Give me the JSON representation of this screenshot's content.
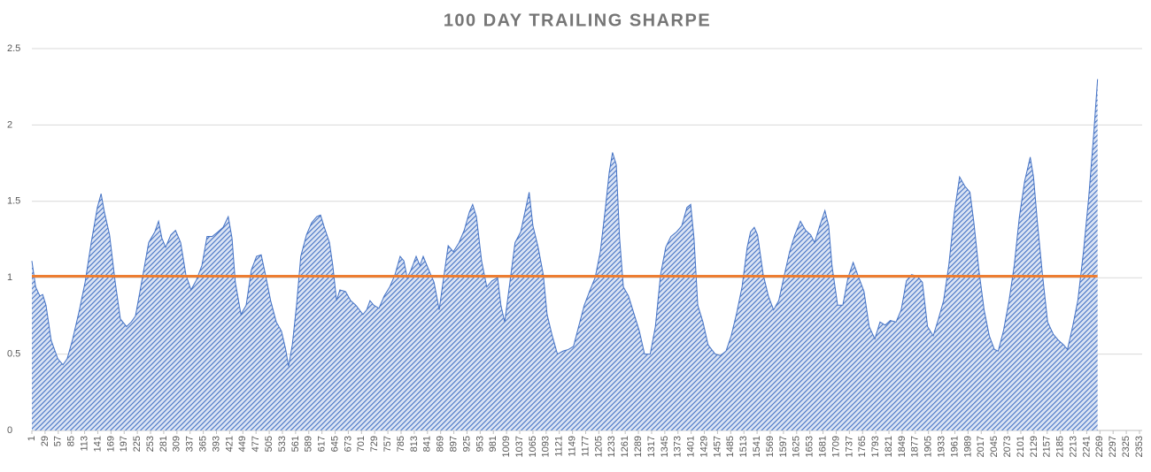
{
  "chart_data": {
    "type": "area",
    "title": "100 DAY TRAILING SHARPE",
    "xlim": [
      1,
      2353
    ],
    "xticks": [
      1,
      29,
      57,
      85,
      113,
      141,
      169,
      197,
      225,
      253,
      281,
      309,
      337,
      365,
      393,
      421,
      449,
      477,
      505,
      533,
      561,
      589,
      617,
      645,
      673,
      701,
      729,
      757,
      785,
      813,
      841,
      869,
      897,
      925,
      953,
      981,
      1009,
      1037,
      1065,
      1093,
      1121,
      1149,
      1177,
      1205,
      1233,
      1261,
      1289,
      1317,
      1345,
      1373,
      1401,
      1429,
      1457,
      1485,
      1513,
      1541,
      1569,
      1597,
      1625,
      1653,
      1681,
      1709,
      1737,
      1765,
      1793,
      1821,
      1849,
      1877,
      1905,
      1933,
      1961,
      1989,
      2017,
      2045,
      2073,
      2101,
      2129,
      2157,
      2185,
      2213,
      2241,
      2269,
      2297,
      2325,
      2353
    ],
    "ylim": [
      0,
      2.5
    ],
    "yticks": [
      0,
      0.5,
      1,
      1.5,
      2,
      2.5
    ],
    "grid": true,
    "series": [
      {
        "type": "area",
        "color": "#4472c4",
        "x": [
          1,
          9,
          18,
          24,
          31,
          42,
          56,
          67,
          76,
          87,
          102,
          114,
          127,
          140,
          148,
          155,
          166,
          178,
          189,
          202,
          212,
          221,
          234,
          249,
          262,
          270,
          277,
          285,
          296,
          306,
          317,
          328,
          339,
          351,
          362,
          373,
          384,
          396,
          407,
          418,
          426,
          433,
          445,
          456,
          467,
          478,
          488,
          497,
          508,
          520,
          531,
          540,
          546,
          554,
          563,
          572,
          584,
          595,
          606,
          614,
          621,
          633,
          640,
          648,
          655,
          667,
          678,
          689,
          704,
          712,
          719,
          727,
          738,
          749,
          761,
          772,
          783,
          791,
          798,
          806,
          817,
          825,
          832,
          844,
          855,
          866,
          874,
          885,
          896,
          908,
          919,
          930,
          937,
          945,
          956,
          967,
          978,
          990,
          997,
          1005,
          1016,
          1027,
          1039,
          1050,
          1057,
          1065,
          1076,
          1087,
          1095,
          1106,
          1117,
          1129,
          1140,
          1151,
          1162,
          1174,
          1185,
          1197,
          1208,
          1219,
          1227,
          1234,
          1242,
          1249,
          1257,
          1268,
          1280,
          1291,
          1302,
          1314,
          1325,
          1336,
          1347,
          1358,
          1370,
          1381,
          1392,
          1400,
          1407,
          1415,
          1426,
          1437,
          1452,
          1463,
          1475,
          1486,
          1497,
          1509,
          1520,
          1527,
          1535,
          1542,
          1554,
          1565,
          1576,
          1587,
          1599,
          1610,
          1621,
          1633,
          1644,
          1655,
          1663,
          1674,
          1685,
          1693,
          1700,
          1712,
          1723,
          1734,
          1745,
          1757,
          1768,
          1779,
          1791,
          1802,
          1813,
          1824,
          1836,
          1847,
          1858,
          1869,
          1881,
          1892,
          1903,
          1915,
          1926,
          1937,
          1948,
          1960,
          1971,
          1982,
          1993,
          2001,
          2012,
          2023,
          2034,
          2045,
          2053,
          2064,
          2076,
          2087,
          2098,
          2109,
          2121,
          2128,
          2136,
          2147,
          2158,
          2170,
          2181,
          2192,
          2200,
          2211,
          2222,
          2234,
          2245,
          2256,
          2264
        ],
        "values": [
          1.11,
          0.94,
          0.88,
          0.89,
          0.82,
          0.59,
          0.47,
          0.43,
          0.47,
          0.59,
          0.79,
          0.97,
          1.23,
          1.46,
          1.55,
          1.43,
          1.28,
          0.97,
          0.73,
          0.68,
          0.71,
          0.75,
          0.97,
          1.23,
          1.3,
          1.37,
          1.26,
          1.2,
          1.28,
          1.31,
          1.23,
          1.02,
          0.92,
          0.99,
          1.08,
          1.27,
          1.27,
          1.3,
          1.33,
          1.4,
          1.26,
          0.97,
          0.76,
          0.82,
          1.05,
          1.14,
          1.15,
          1.02,
          0.85,
          0.71,
          0.65,
          0.53,
          0.42,
          0.56,
          0.82,
          1.14,
          1.28,
          1.36,
          1.4,
          1.41,
          1.34,
          1.23,
          1.08,
          0.85,
          0.92,
          0.91,
          0.85,
          0.82,
          0.76,
          0.79,
          0.85,
          0.82,
          0.8,
          0.88,
          0.94,
          1.02,
          1.14,
          1.11,
          1.0,
          1.05,
          1.14,
          1.08,
          1.14,
          1.05,
          0.97,
          0.79,
          0.97,
          1.21,
          1.17,
          1.23,
          1.31,
          1.43,
          1.48,
          1.4,
          1.11,
          0.94,
          0.98,
          1.0,
          0.82,
          0.71,
          0.97,
          1.23,
          1.3,
          1.46,
          1.56,
          1.34,
          1.2,
          1.02,
          0.76,
          0.62,
          0.5,
          0.52,
          0.53,
          0.55,
          0.68,
          0.82,
          0.91,
          1.0,
          1.17,
          1.46,
          1.69,
          1.82,
          1.74,
          1.26,
          0.94,
          0.88,
          0.76,
          0.65,
          0.5,
          0.5,
          0.68,
          1.02,
          1.2,
          1.27,
          1.3,
          1.34,
          1.46,
          1.48,
          1.26,
          0.82,
          0.71,
          0.56,
          0.5,
          0.49,
          0.52,
          0.62,
          0.76,
          0.94,
          1.2,
          1.3,
          1.33,
          1.28,
          1.02,
          0.88,
          0.79,
          0.85,
          1.02,
          1.17,
          1.28,
          1.37,
          1.31,
          1.28,
          1.23,
          1.34,
          1.44,
          1.34,
          1.08,
          0.82,
          0.82,
          1.0,
          1.1,
          1.0,
          0.91,
          0.68,
          0.6,
          0.71,
          0.69,
          0.72,
          0.71,
          0.79,
          0.98,
          1.02,
          1.01,
          0.97,
          0.68,
          0.62,
          0.73,
          0.85,
          1.08,
          1.43,
          1.66,
          1.6,
          1.56,
          1.37,
          1.05,
          0.79,
          0.62,
          0.53,
          0.52,
          0.65,
          0.85,
          1.08,
          1.4,
          1.63,
          1.79,
          1.66,
          1.37,
          1.02,
          0.71,
          0.63,
          0.59,
          0.56,
          0.53,
          0.68,
          0.85,
          1.17,
          1.52,
          1.95,
          2.3
        ]
      },
      {
        "type": "line",
        "color": "#ed7d31",
        "x": [
          1,
          2264
        ],
        "values": [
          1.01,
          1.01
        ]
      }
    ]
  }
}
